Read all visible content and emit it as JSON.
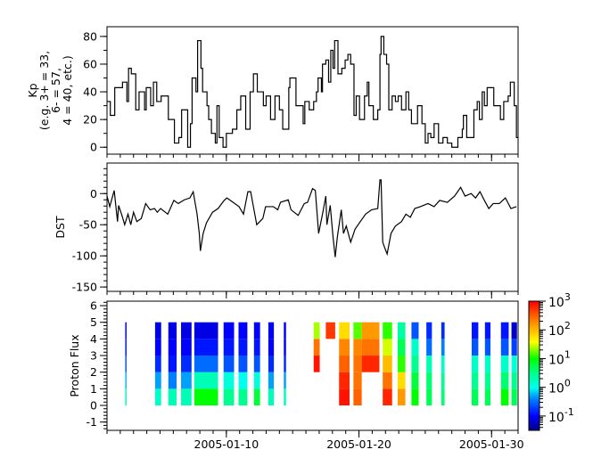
{
  "chart_data": [
    {
      "type": "line",
      "step": true,
      "ylabel_lines": [
        "Kp",
        "(e.g. 3+ = 33,",
        "6- = 57,",
        "4 = 40, etc.)"
      ],
      "ylim": [
        -5,
        87
      ],
      "yticks": [
        0,
        20,
        40,
        60,
        80
      ],
      "yminor_step": 10,
      "color": "#000000",
      "x": [
        "2005-01-01 00",
        "2005-01-01 06",
        "2005-01-01 14",
        "2005-01-02 04",
        "2005-01-02 12",
        "2005-01-02 15",
        "2005-01-02 20",
        "2005-01-03 04",
        "2005-01-03 10",
        "2005-01-03 20",
        "2005-01-03 23",
        "2005-01-04 07",
        "2005-01-04 12",
        "2005-01-04 18",
        "2005-01-05 02",
        "2005-01-05 15",
        "2005-01-06 02",
        "2005-01-06 10",
        "2005-01-06 15",
        "2005-01-07 02",
        "2005-01-07 07",
        "2005-01-07 10",
        "2005-01-07 17",
        "2005-01-07 20",
        "2005-01-08 02",
        "2005-01-08 05",
        "2005-01-08 13",
        "2005-01-08 16",
        "2005-01-08 21",
        "2005-01-09 04",
        "2005-01-09 07",
        "2005-01-09 11",
        "2005-01-09 18",
        "2005-01-10 00",
        "2005-01-10 11",
        "2005-01-10 19",
        "2005-01-11 02",
        "2005-01-11 11",
        "2005-01-11 19",
        "2005-01-12 01",
        "2005-01-12 08",
        "2005-01-12 19",
        "2005-01-13 00",
        "2005-01-13 08",
        "2005-01-13 16",
        "2005-01-14 00",
        "2005-01-14 06",
        "2005-01-14 17",
        "2005-01-14 19",
        "2005-01-15 06",
        "2005-01-15 19",
        "2005-01-15 22",
        "2005-01-16 06",
        "2005-01-16 14",
        "2005-01-16 19",
        "2005-01-16 22",
        "2005-01-17 04",
        "2005-01-17 06",
        "2005-01-17 12",
        "2005-01-17 17",
        "2005-01-17 21",
        "2005-01-18 01",
        "2005-01-18 04",
        "2005-01-18 10",
        "2005-01-18 17",
        "2005-01-18 23",
        "2005-01-19 04",
        "2005-01-19 09",
        "2005-01-19 15",
        "2005-01-19 19",
        "2005-01-20 01",
        "2005-01-20 10",
        "2005-01-20 15",
        "2005-01-20 18",
        "2005-01-21 02",
        "2005-01-21 10",
        "2005-01-21 14",
        "2005-01-21 16",
        "2005-01-21 21",
        "2005-01-22 02",
        "2005-01-22 06",
        "2005-01-22 12",
        "2005-01-22 18",
        "2005-01-22 23",
        "2005-01-23 05",
        "2005-01-23 13",
        "2005-01-23 18",
        "2005-01-23 23",
        "2005-01-24 10",
        "2005-01-24 18",
        "2005-01-25 00",
        "2005-01-25 05",
        "2005-01-25 10",
        "2005-01-25 16",
        "2005-01-26 00",
        "2005-01-26 08",
        "2005-01-26 16",
        "2005-01-27 00",
        "2005-01-27 11",
        "2005-01-27 19",
        "2005-01-27 21",
        "2005-01-28 03",
        "2005-01-28 16",
        "2005-01-28 22",
        "2005-01-29 02",
        "2005-01-29 07",
        "2005-01-29 11",
        "2005-01-29 16",
        "2005-01-30 00",
        "2005-01-30 04",
        "2005-01-30 16",
        "2005-01-30 22",
        "2005-01-31 06",
        "2005-01-31 10",
        "2005-01-31 17",
        "2005-01-31 21"
      ],
      "y": [
        33,
        23,
        43,
        47,
        33,
        57,
        53,
        27,
        40,
        27,
        43,
        30,
        47,
        33,
        37,
        20,
        3,
        7,
        27,
        0,
        17,
        50,
        40,
        77,
        57,
        40,
        30,
        20,
        10,
        3,
        30,
        7,
        0,
        10,
        13,
        27,
        37,
        13,
        40,
        53,
        40,
        30,
        37,
        20,
        37,
        27,
        13,
        43,
        50,
        30,
        17,
        33,
        27,
        33,
        40,
        50,
        40,
        60,
        63,
        47,
        70,
        57,
        77,
        53,
        57,
        63,
        67,
        60,
        23,
        37,
        20,
        37,
        47,
        30,
        20,
        27,
        67,
        80,
        67,
        60,
        27,
        37,
        33,
        37,
        27,
        40,
        27,
        17,
        30,
        17,
        3,
        10,
        7,
        17,
        3,
        7,
        3,
        0,
        7,
        13,
        23,
        7,
        27,
        33,
        20,
        40,
        30,
        43,
        43,
        30,
        20,
        33,
        37,
        47,
        30,
        7
      ]
    },
    {
      "type": "line",
      "ylabel": "DST",
      "ylim": [
        -157,
        49
      ],
      "yticks": [
        0,
        -50,
        -100,
        -150
      ],
      "yminor_step": 10,
      "color": "#000000",
      "x": [
        "2005-01-01 00",
        "2005-01-01 05",
        "2005-01-01 13",
        "2005-01-01 19",
        "2005-01-01 21",
        "2005-01-02 03",
        "2005-01-02 08",
        "2005-01-02 14",
        "2005-01-02 19",
        "2005-01-03 00",
        "2005-01-03 06",
        "2005-01-03 14",
        "2005-01-03 22",
        "2005-01-04 06",
        "2005-01-04 14",
        "2005-01-04 19",
        "2005-01-05 01",
        "2005-01-05 14",
        "2005-01-06 01",
        "2005-01-06 09",
        "2005-01-06 20",
        "2005-01-07 06",
        "2005-01-07 12",
        "2005-01-07 19",
        "2005-01-07 23",
        "2005-01-08 01",
        "2005-01-08 06",
        "2005-01-08 12",
        "2005-01-08 23",
        "2005-01-09 09",
        "2005-01-09 20",
        "2005-01-10 01",
        "2005-01-10 12",
        "2005-01-10 23",
        "2005-01-11 07",
        "2005-01-11 15",
        "2005-01-11 20",
        "2005-01-12 02",
        "2005-01-12 07",
        "2005-01-12 18",
        "2005-01-12 23",
        "2005-01-13 13",
        "2005-01-13 21",
        "2005-01-14 02",
        "2005-01-14 16",
        "2005-01-14 21",
        "2005-01-15 10",
        "2005-01-15 21",
        "2005-01-16 03",
        "2005-01-16 12",
        "2005-01-16 17",
        "2005-01-16 23",
        "2005-01-17 06",
        "2005-01-17 12",
        "2005-01-17 14",
        "2005-01-17 20",
        "2005-01-18 01",
        "2005-01-18 05",
        "2005-01-18 09",
        "2005-01-18 16",
        "2005-01-18 20",
        "2005-01-19 01",
        "2005-01-19 09",
        "2005-01-19 17",
        "2005-01-20 04",
        "2005-01-20 12",
        "2005-01-20 23",
        "2005-01-21 10",
        "2005-01-21 14",
        "2005-01-21 16",
        "2005-01-21 19",
        "2005-01-21 23",
        "2005-01-22 03",
        "2005-01-22 10",
        "2005-01-22 18",
        "2005-01-23 05",
        "2005-01-23 13",
        "2005-01-23 21",
        "2005-01-24 05",
        "2005-01-24 15",
        "2005-01-25 05",
        "2005-01-25 16",
        "2005-01-26 02",
        "2005-01-26 16",
        "2005-01-27 05",
        "2005-01-27 16",
        "2005-01-28 00",
        "2005-01-28 11",
        "2005-01-28 19",
        "2005-01-29 03",
        "2005-01-29 11",
        "2005-01-29 19",
        "2005-01-30 03",
        "2005-01-30 14",
        "2005-01-31 01",
        "2005-01-31 11",
        "2005-01-31 21"
      ],
      "y": [
        -4,
        -21,
        5,
        -45,
        -19,
        -35,
        -50,
        -33,
        -50,
        -30,
        -45,
        -40,
        -16,
        -26,
        -24,
        -30,
        -24,
        -33,
        -11,
        -16,
        -10,
        -7,
        3,
        -33,
        -64,
        -92,
        -64,
        -47,
        -30,
        -24,
        -11,
        -7,
        -14,
        -21,
        -33,
        3,
        3,
        -26,
        -50,
        -40,
        -21,
        -21,
        -26,
        -14,
        -10,
        -26,
        -35,
        -16,
        -14,
        8,
        5,
        -64,
        -33,
        -4,
        -50,
        -19,
        -69,
        -102,
        -69,
        -26,
        -64,
        -52,
        -78,
        -57,
        -43,
        -33,
        -26,
        -24,
        22,
        22,
        -78,
        -88,
        -97,
        -64,
        -52,
        -45,
        -33,
        -38,
        -24,
        -21,
        -16,
        -21,
        -11,
        -14,
        -4,
        10,
        -4,
        0,
        -7,
        3,
        -11,
        -24,
        -16,
        -16,
        -7,
        -24,
        -21
      ]
    },
    {
      "type": "heatmap",
      "ylabel": "Proton Flux",
      "ylim": [
        -1.5,
        6.27
      ],
      "yticks": [
        -1,
        0,
        1,
        2,
        3,
        4,
        5,
        6
      ],
      "yminor_step": 0.2,
      "channels": [
        0,
        1,
        2,
        3,
        4
      ],
      "value_scale": "log10",
      "zlim_log10": [
        -1.5,
        3
      ],
      "colorbar_ticks": [
        "10^-1",
        "10^0",
        "10^1",
        "10^2",
        "10^3"
      ],
      "colorbar_tick_values": [
        -1,
        0,
        1,
        2,
        3
      ],
      "colormap": [
        [
          "-1.5",
          "#00007a"
        ],
        [
          "-1.0",
          "#0000ff"
        ],
        [
          "-0.4",
          "#0080ff"
        ],
        [
          "0.0",
          "#00ffee"
        ],
        [
          "0.5",
          "#00ff90"
        ],
        [
          "1.0",
          "#00ff00"
        ],
        [
          "1.6",
          "#ffff00"
        ],
        [
          "2.2",
          "#ff9900"
        ],
        [
          "3.0",
          "#ff0000"
        ]
      ],
      "segments": [
        {
          "start": "2005-01-02 09",
          "end": "2005-01-02 11",
          "log_flux": [
            0.3,
            -0.2,
            -0.6,
            -0.9,
            -1.0
          ]
        },
        {
          "start": "2005-01-04 15",
          "end": "2005-01-05 02",
          "log_flux": [
            0.2,
            -0.3,
            -0.8,
            -1.0,
            -1.1
          ]
        },
        {
          "start": "2005-01-05 15",
          "end": "2005-01-06 06",
          "log_flux": [
            0.3,
            -0.4,
            -0.9,
            -1.0,
            -1.1
          ]
        },
        {
          "start": "2005-01-06 14",
          "end": "2005-01-07 09",
          "log_flux": [
            0.3,
            -0.3,
            -0.8,
            -1.0,
            -1.1
          ]
        },
        {
          "start": "2005-01-07 14",
          "end": "2005-01-09 09",
          "log_flux": [
            1.0,
            0.3,
            -0.5,
            -0.9,
            -1.1
          ]
        },
        {
          "start": "2005-01-09 19",
          "end": "2005-01-10 14",
          "log_flux": [
            0.5,
            0.1,
            -0.6,
            -0.9,
            -1.0
          ]
        },
        {
          "start": "2005-01-10 22",
          "end": "2005-01-11 14",
          "log_flux": [
            0.5,
            0.0,
            -0.6,
            -0.9,
            -1.0
          ]
        },
        {
          "start": "2005-01-12 02",
          "end": "2005-01-12 13",
          "log_flux": [
            0.8,
            0.1,
            -0.6,
            -0.9,
            -1.0
          ]
        },
        {
          "start": "2005-01-13 04",
          "end": "2005-01-13 14",
          "log_flux": [
            0.3,
            -0.3,
            -0.8,
            -1.0,
            -1.0
          ]
        },
        {
          "start": "2005-01-14 08",
          "end": "2005-01-14 12",
          "log_flux": [
            0.3,
            -0.3,
            -0.8,
            -1.0,
            -1.0
          ]
        },
        {
          "start": "2005-01-16 14",
          "end": "2005-01-17 01",
          "log_flux": [
            null,
            null,
            2.9,
            2.4,
            1.4
          ]
        },
        {
          "start": "2005-01-17 12",
          "end": "2005-01-18 05",
          "log_flux": [
            null,
            null,
            null,
            null,
            2.7
          ]
        },
        {
          "start": "2005-01-18 12",
          "end": "2005-01-19 07",
          "log_flux": [
            2.9,
            2.8,
            2.5,
            2.3,
            1.8
          ]
        },
        {
          "start": "2005-01-19 14",
          "end": "2005-01-20 05",
          "log_flux": [
            2.5,
            2.4,
            2.4,
            2.3,
            1.2
          ]
        },
        {
          "start": "2005-01-20 05",
          "end": "2005-01-21 13",
          "log_flux": [
            null,
            null,
            2.8,
            2.4,
            2.2
          ]
        },
        {
          "start": "2005-01-21 19",
          "end": "2005-01-22 12",
          "log_flux": [
            2.8,
            2.4,
            2.0,
            1.5,
            1.1
          ]
        },
        {
          "start": "2005-01-22 22",
          "end": "2005-01-23 12",
          "log_flux": [
            2.2,
            1.8,
            1.1,
            0.7,
            0.4
          ]
        },
        {
          "start": "2005-01-23 23",
          "end": "2005-01-24 12",
          "log_flux": [
            1.0,
            0.8,
            0.5,
            0.2,
            -0.6
          ]
        },
        {
          "start": "2005-01-25 02",
          "end": "2005-01-25 12",
          "log_flux": [
            0.7,
            0.6,
            0.3,
            -0.5,
            -0.8
          ]
        },
        {
          "start": "2005-01-26 05",
          "end": "2005-01-26 11",
          "log_flux": [
            0.6,
            0.5,
            0.2,
            -0.4,
            -0.8
          ]
        },
        {
          "start": "2005-01-28 12",
          "end": "2005-01-29 00",
          "log_flux": [
            0.7,
            0.5,
            0.2,
            -0.6,
            -0.9
          ]
        },
        {
          "start": "2005-01-29 12",
          "end": "2005-01-29 22",
          "log_flux": [
            0.7,
            0.5,
            0.2,
            -0.6,
            -0.9
          ]
        },
        {
          "start": "2005-01-30 17",
          "end": "2005-01-31 07",
          "log_flux": [
            1.0,
            0.6,
            0.2,
            -0.6,
            -0.9
          ]
        },
        {
          "start": "2005-01-31 12",
          "end": "2005-01-31 22",
          "log_flux": [
            0.7,
            0.5,
            0.1,
            -0.7,
            -1.2
          ]
        }
      ]
    }
  ],
  "x_axis": {
    "range": [
      "2005-01-01 00",
      "2005-02-01 00"
    ],
    "minor_tick": "1 day",
    "tick_labels": [
      "2005-01-10",
      "2005-01-20",
      "2005-01-30"
    ],
    "grid": false
  }
}
